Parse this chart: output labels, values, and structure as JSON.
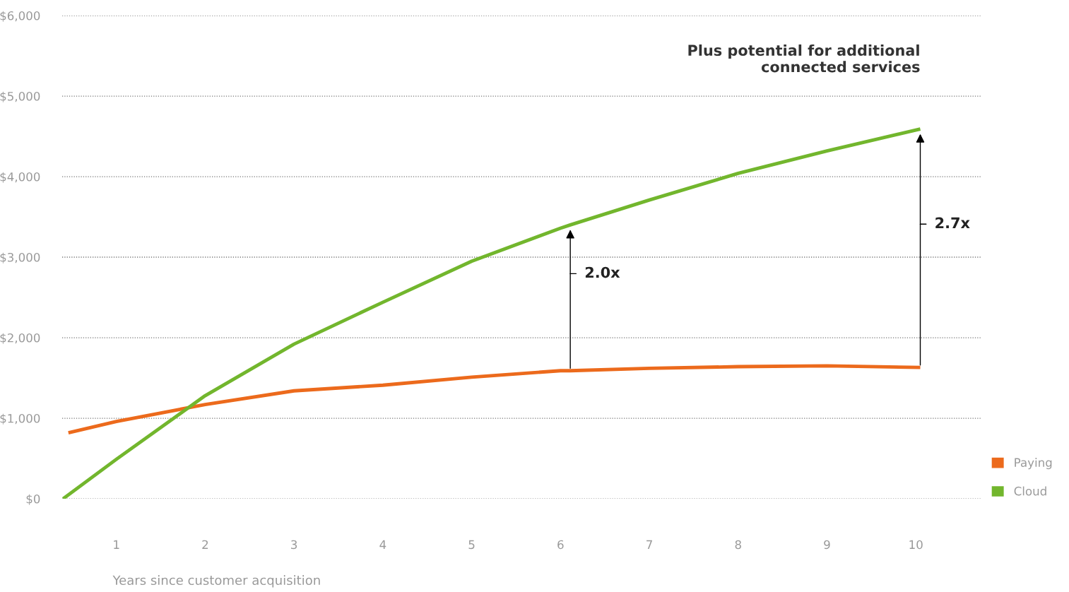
{
  "chart_data": {
    "type": "line",
    "xlabel": "Years since customer acquisition",
    "xlim": [
      0.39,
      10.73
    ],
    "xticks": [
      1,
      2,
      3,
      4,
      5,
      6,
      7,
      8,
      9,
      10
    ],
    "ylim": [
      0,
      6000
    ],
    "yticks": [
      {
        "value": 0,
        "label": "$0"
      },
      {
        "value": 1000,
        "label": "$1,000"
      },
      {
        "value": 2000,
        "label": "$2,000"
      },
      {
        "value": 3000,
        "label": "$3,000"
      },
      {
        "value": 4000,
        "label": "$4,000"
      },
      {
        "value": 5000,
        "label": "$5,000"
      },
      {
        "value": 6000,
        "label": "$6,000"
      }
    ],
    "grid": "y",
    "legend": "right",
    "marker": "none",
    "line_style": "solid",
    "series": [
      {
        "name": "Paying",
        "color": "#ec6a1c",
        "x": [
          0.46,
          1,
          2,
          3,
          4,
          5,
          6,
          6.11,
          7,
          8,
          9,
          10.05
        ],
        "values": [
          820,
          960,
          1170,
          1340,
          1410,
          1510,
          1590,
          1590,
          1620,
          1640,
          1650,
          1630
        ]
      },
      {
        "name": "Cloud",
        "color": "#72b62d",
        "x": [
          0.4,
          1,
          2,
          3,
          4,
          5,
          6,
          6.11,
          7,
          8,
          9,
          10.05
        ],
        "values": [
          0,
          490,
          1280,
          1920,
          2440,
          2950,
          3360,
          3400,
          3710,
          4040,
          4320,
          4590
        ]
      }
    ],
    "annotations": [
      {
        "text": "2.0x",
        "x": 6.11,
        "y": 3400
      },
      {
        "text": "2.7x",
        "x": 10.05,
        "y": 4590
      },
      "Plus potential for additional\nconnected services"
    ]
  }
}
